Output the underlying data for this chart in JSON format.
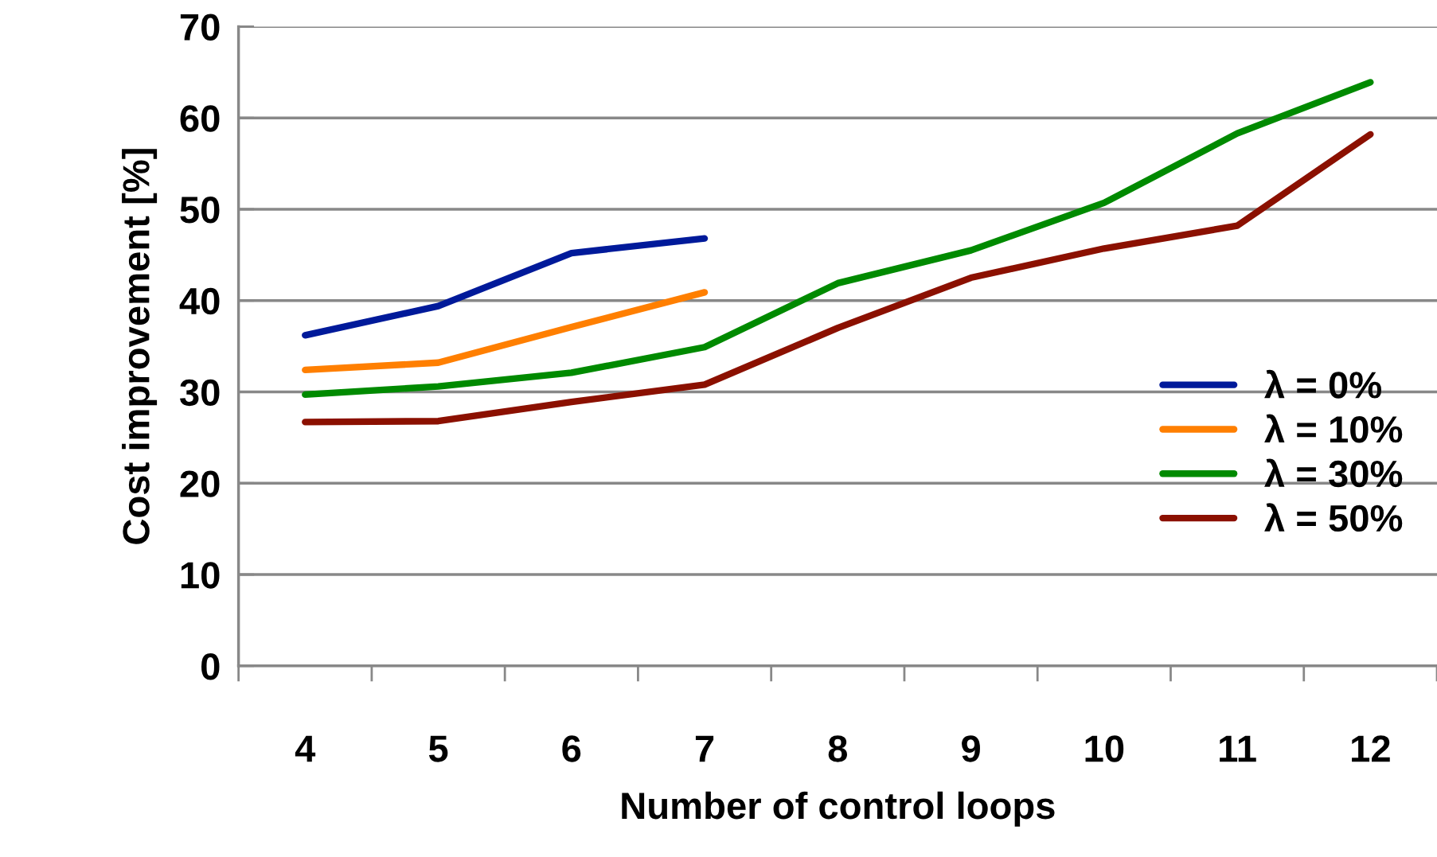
{
  "chart_data": {
    "type": "line",
    "xlabel": "Number of control loops",
    "ylabel": "Cost improvement [%]",
    "categories": [
      "4",
      "5",
      "6",
      "7",
      "8",
      "9",
      "10",
      "11",
      "12"
    ],
    "series": [
      {
        "name": "λ = 0%",
        "color": "#001a9a",
        "values": [
          36.2,
          39.4,
          45.2,
          46.8,
          null,
          null,
          null,
          null,
          null
        ]
      },
      {
        "name": "λ = 10%",
        "color": "#ff7f00",
        "values": [
          32.4,
          33.2,
          37.1,
          40.9,
          null,
          null,
          null,
          null,
          null
        ]
      },
      {
        "name": "λ = 30%",
        "color": "#008a00",
        "values": [
          29.7,
          30.6,
          32.1,
          34.9,
          41.9,
          45.5,
          50.7,
          58.3,
          63.9
        ]
      },
      {
        "name": "λ = 50%",
        "color": "#8b1000",
        "values": [
          26.7,
          26.8,
          28.9,
          30.8,
          37.0,
          42.5,
          45.7,
          48.2,
          58.2
        ]
      }
    ],
    "ylim": [
      0,
      70
    ],
    "yticks": [
      0,
      10,
      20,
      30,
      40,
      50,
      60,
      70
    ],
    "grid": "y",
    "legend": "right",
    "marker": "none",
    "line_style": "solid"
  }
}
